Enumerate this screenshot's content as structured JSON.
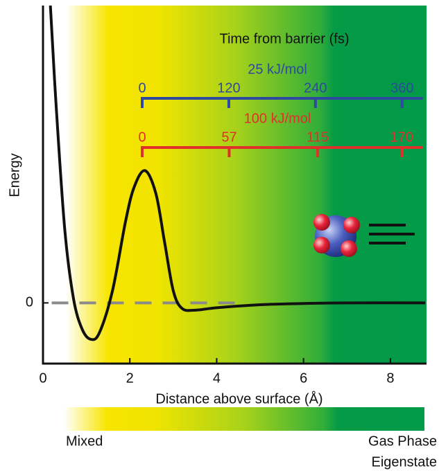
{
  "chart_data": {
    "type": "line",
    "x_label": "Distance above surface (Å)",
    "y_label": "Energy",
    "x": [
      0.17,
      0.3,
      0.5,
      0.7,
      0.9,
      1.1,
      1.3,
      1.6,
      1.9,
      2.1,
      2.35,
      2.6,
      2.8,
      3.0,
      3.2,
      3.5,
      4.0,
      5.0,
      6.0,
      7.0,
      8.8
    ],
    "values": [
      4.9,
      3.28,
      1.22,
      0.08,
      -0.43,
      -0.6,
      -0.49,
      0.2,
      1.34,
      1.91,
      2.18,
      1.8,
      1.0,
      0.2,
      -0.09,
      -0.12,
      -0.08,
      -0.03,
      -0.01,
      0,
      0
    ],
    "color": "#111111",
    "xlim": [
      0,
      8.8
    ],
    "ylim": [
      -1,
      4.9
    ],
    "xticks": [
      0,
      2,
      4,
      6,
      8
    ],
    "yticks": [
      0
    ],
    "reference_line": {
      "value": 0,
      "x": [
        0.2,
        4.6
      ],
      "color": "#8a8a8a"
    },
    "time_axes": {
      "title": "Time from barrier (fs)",
      "axes": [
        {
          "label": "25 kJ/mol",
          "color": "#2d4a9e",
          "ticks": [
            0,
            120,
            240,
            360
          ],
          "lim": [
            0,
            389
          ]
        },
        {
          "label": "100 kJ/mol",
          "color": "#e0302a",
          "ticks": [
            0,
            57,
            115,
            170
          ],
          "lim": [
            0,
            184
          ]
        }
      ]
    },
    "colorbar": {
      "left_label": "Mixed",
      "right_label": [
        "Gas Phase",
        "Eigenstate"
      ]
    }
  }
}
